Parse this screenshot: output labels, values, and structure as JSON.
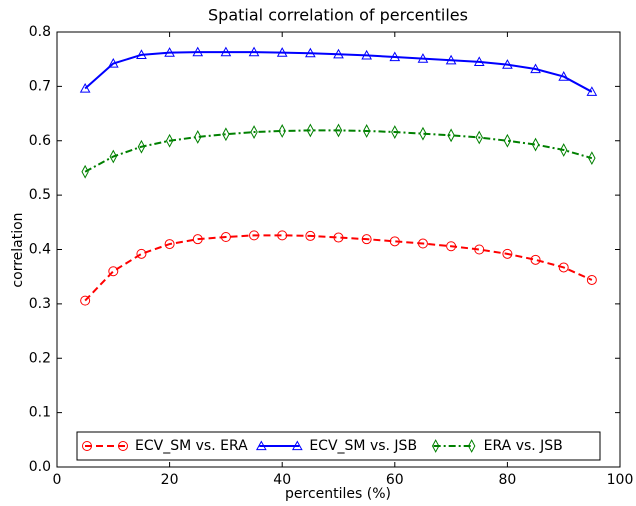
{
  "chart_data": {
    "type": "line",
    "title": "Spatial correlation of percentiles",
    "xlabel": "percentiles (%)",
    "ylabel": "correlation",
    "x": [
      5,
      10,
      15,
      20,
      25,
      30,
      35,
      40,
      45,
      50,
      55,
      60,
      65,
      70,
      75,
      80,
      85,
      90,
      95
    ],
    "series": [
      {
        "name": "ECV_SM vs. ERA",
        "color": "#ff0000",
        "linestyle": "dashed",
        "marker": "circle",
        "values": [
          0.306,
          0.36,
          0.392,
          0.41,
          0.419,
          0.423,
          0.426,
          0.426,
          0.425,
          0.422,
          0.419,
          0.415,
          0.411,
          0.406,
          0.4,
          0.392,
          0.381,
          0.367,
          0.344
        ]
      },
      {
        "name": "ECV_SM vs. JSB",
        "color": "#0000ff",
        "linestyle": "solid",
        "marker": "triangle",
        "values": [
          0.696,
          0.742,
          0.758,
          0.762,
          0.763,
          0.763,
          0.763,
          0.762,
          0.761,
          0.759,
          0.757,
          0.754,
          0.751,
          0.748,
          0.745,
          0.74,
          0.732,
          0.718,
          0.69
        ]
      },
      {
        "name": "ERA vs. JSB",
        "color": "#008000",
        "linestyle": "dashdot",
        "marker": "diamond",
        "values": [
          0.543,
          0.571,
          0.589,
          0.6,
          0.607,
          0.612,
          0.616,
          0.618,
          0.619,
          0.619,
          0.618,
          0.616,
          0.613,
          0.61,
          0.606,
          0.6,
          0.593,
          0.583,
          0.568
        ]
      }
    ],
    "xlim": [
      0,
      100
    ],
    "xticks": [
      0,
      20,
      40,
      60,
      80,
      100
    ],
    "ylim": [
      0,
      0.8
    ],
    "yticks": [
      {
        "value": 0,
        "label": "0.0"
      },
      0.1,
      0.2,
      0.3,
      0.4,
      0.5,
      0.6,
      0.7,
      0.8
    ],
    "legend": "lower center",
    "grid": false
  }
}
